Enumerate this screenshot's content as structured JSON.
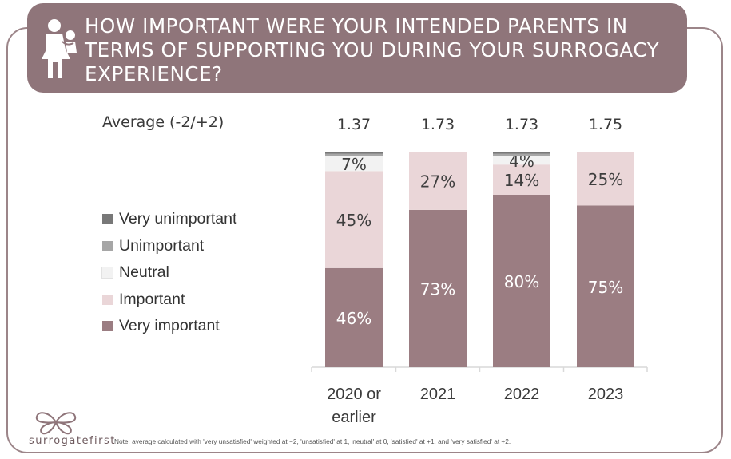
{
  "header": {
    "title": "HOW IMPORTANT WERE YOUR INTENDED PARENTS IN TERMS OF SUPPORTING YOU DURING YOUR SURROGACY EXPERIENCE?",
    "icon": "parent-with-child-icon"
  },
  "average_label": "Average (-2/+2)",
  "colors": {
    "brand": "#8f757a",
    "very_unimportant": "#787878",
    "unimportant": "#a6a6a6",
    "neutral": "#f2f2f2",
    "important": "#ead6d8",
    "very_important": "#9b7d82"
  },
  "chart_data": {
    "type": "bar",
    "stacked": true,
    "categories": [
      "2020 or earlier",
      "2021",
      "2022",
      "2023"
    ],
    "category_lines": [
      [
        "2020 or",
        "earlier"
      ],
      [
        "2021"
      ],
      [
        "2022"
      ],
      [
        "2023"
      ]
    ],
    "averages": [
      "1.37",
      "1.73",
      "1.73",
      "1.75"
    ],
    "ylim": [
      0,
      100
    ],
    "legend_position": "left",
    "series": [
      {
        "name": "Very important",
        "color": "#9b7d82",
        "label_color": "#ffffff",
        "values": [
          46,
          73,
          80,
          75
        ],
        "labels": [
          "46%",
          "73%",
          "80%",
          "75%"
        ]
      },
      {
        "name": "Important",
        "color": "#ead6d8",
        "label_color": "#3f3f3f",
        "values": [
          45,
          27,
          14,
          25
        ],
        "labels": [
          "45%",
          "27%",
          "14%",
          "25%"
        ]
      },
      {
        "name": "Neutral",
        "color": "#f2f2f2",
        "label_color": "#3f3f3f",
        "values": [
          7,
          0,
          4,
          0
        ],
        "labels": [
          "7%",
          "",
          "4%",
          ""
        ]
      },
      {
        "name": "Unimportant",
        "color": "#a6a6a6",
        "label_color": "#3f3f3f",
        "values": [
          1,
          0,
          1,
          0
        ],
        "labels": [
          "",
          "",
          "",
          ""
        ]
      },
      {
        "name": "Very unimportant",
        "color": "#787878",
        "label_color": "#3f3f3f",
        "values": [
          1,
          0,
          1,
          0
        ],
        "labels": [
          "",
          "",
          "",
          ""
        ]
      }
    ],
    "legend_order": [
      "Very unimportant",
      "Unimportant",
      "Neutral",
      "Important",
      "Very important"
    ]
  },
  "logo": {
    "text": "surrogatefirst",
    "icon": "butterfly-logo-icon"
  },
  "note": "Note:  average calculated with 'very unsatisfied' weighted at −2, 'unsatisfied' at 1, 'neutral' at 0, 'satisfied' at +1, and 'very satisfied' at +2."
}
